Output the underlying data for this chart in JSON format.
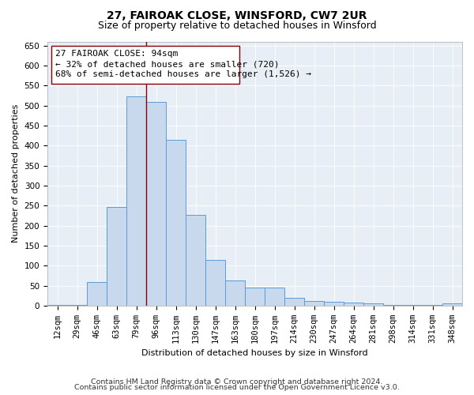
{
  "title": "27, FAIROAK CLOSE, WINSFORD, CW7 2UR",
  "subtitle": "Size of property relative to detached houses in Winsford",
  "xlabel": "Distribution of detached houses by size in Winsford",
  "ylabel": "Number of detached properties",
  "categories": [
    "12sqm",
    "29sqm",
    "46sqm",
    "63sqm",
    "79sqm",
    "96sqm",
    "113sqm",
    "130sqm",
    "147sqm",
    "163sqm",
    "180sqm",
    "197sqm",
    "214sqm",
    "230sqm",
    "247sqm",
    "264sqm",
    "281sqm",
    "298sqm",
    "314sqm",
    "331sqm",
    "348sqm"
  ],
  "values": [
    2,
    2,
    60,
    247,
    522,
    510,
    415,
    226,
    115,
    63,
    45,
    45,
    20,
    12,
    10,
    8,
    6,
    2,
    1,
    1,
    6
  ],
  "bar_color": "#c9d9ed",
  "bar_edge_color": "#5b9bd5",
  "vline_x": 4.5,
  "vline_color": "#8b0000",
  "ann_line1": "27 FAIROAK CLOSE: 94sqm",
  "ann_line2": "← 32% of detached houses are smaller (720)",
  "ann_line3": "68% of semi-detached houses are larger (1,526) →",
  "ylim": [
    0,
    660
  ],
  "yticks": [
    0,
    50,
    100,
    150,
    200,
    250,
    300,
    350,
    400,
    450,
    500,
    550,
    600,
    650
  ],
  "footer_line1": "Contains HM Land Registry data © Crown copyright and database right 2024.",
  "footer_line2": "Contains public sector information licensed under the Open Government Licence v3.0.",
  "bg_color": "#e8eef6",
  "title_fontsize": 10,
  "subtitle_fontsize": 9,
  "axis_fontsize": 8,
  "tick_fontsize": 7.5,
  "ann_fontsize": 8,
  "footer_fontsize": 6.8
}
